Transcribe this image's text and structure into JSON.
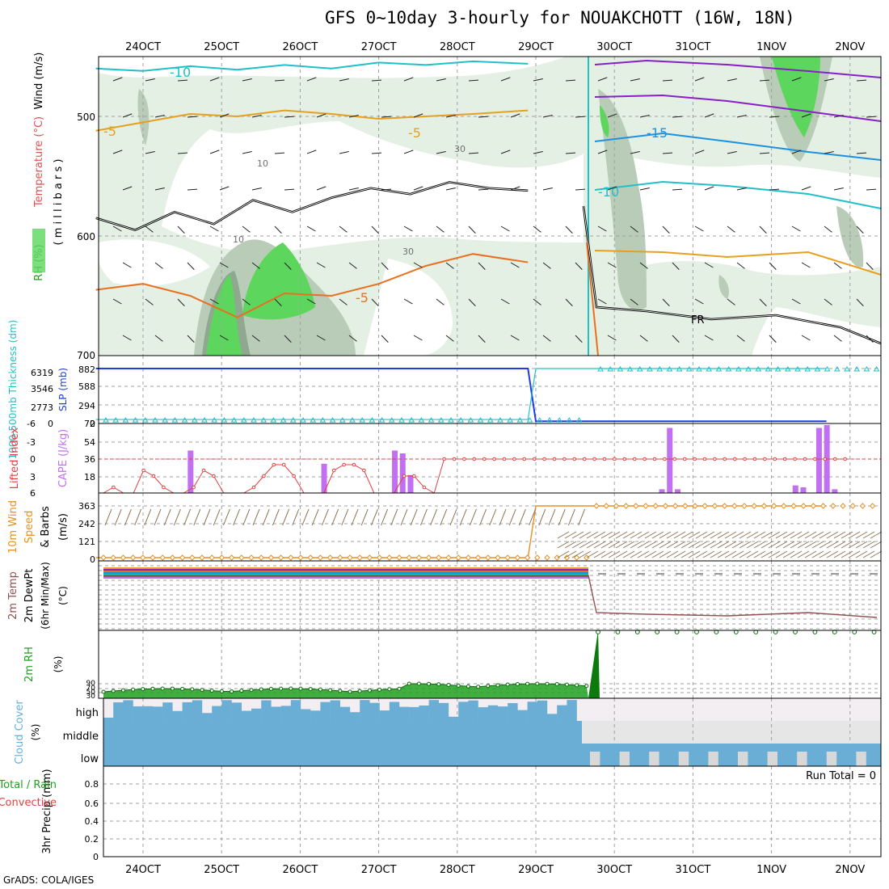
{
  "title": "GFS 0~10day 3-hourly for NOUAKCHOTT (16W, 18N)",
  "footer": "GrADS: COLA/IGES",
  "dates": [
    "24OCT",
    "25OCT",
    "26OCT",
    "27OCT",
    "28OCT",
    "29OCT",
    "30OCT",
    "31OCT",
    "1NOV",
    "2NOV"
  ],
  "colors": {
    "rh_light": "#e4f0e4",
    "rh_mid": "#b8ccb8",
    "rh_dark": "#8fa88f",
    "rh_green": "#5cd65c",
    "temp_cyan": "#20c0c8",
    "temp_orange": "#e6a020",
    "temp_dorange": "#e87020",
    "temp_blue": "#1e90e0",
    "temp_purple": "#8a1ec8",
    "slp": "#1e3ce0",
    "thick": "#20c0c8",
    "cape": "#c070f0",
    "li": "#e04040",
    "wind10": "#e89020",
    "barb": "#8a7050",
    "rh2m": "#20a020",
    "cloud": "#6aaed6",
    "cloud_bg": "#f2eef2"
  },
  "chart_data": [
    {
      "panel": "upper-air",
      "type": "heatmap",
      "ylabel_left": [
        "RH (%)",
        "Temperature (°C)",
        "Wind (m/s)"
      ],
      "ylabel_right": "( m i l l i b a r s )",
      "yticks": [
        "500",
        "600",
        "700"
      ],
      "contour_labels": [
        "-10",
        "-5",
        "-5",
        "-5",
        "-15",
        "-10",
        "30",
        "10",
        "10",
        "30",
        "FR"
      ],
      "series": [
        {
          "name": "-10",
          "color": "cyan",
          "x_day": [
            0,
            0.6,
            1.2,
            1.8,
            2.4,
            3,
            3.6,
            4.2,
            4.8,
            5.5
          ],
          "y_mb": [
            460,
            462,
            458,
            461,
            457,
            460,
            455,
            457,
            454,
            456
          ]
        },
        {
          "name": "-5",
          "color": "orange",
          "x_day": [
            0,
            0.6,
            1.2,
            1.8,
            2.4,
            3,
            3.6,
            4.2,
            4.8,
            5.5
          ],
          "y_mb": [
            512,
            505,
            498,
            500,
            495,
            498,
            502,
            500,
            498,
            495
          ]
        },
        {
          "name": "-5 lower",
          "color": "dark-orange",
          "x_day": [
            0,
            0.6,
            1.2,
            1.8,
            2.4,
            3,
            3.6,
            4.2,
            4.8,
            5.5
          ],
          "y_mb": [
            645,
            640,
            650,
            668,
            648,
            650,
            640,
            625,
            615,
            622
          ]
        },
        {
          "name": "FR",
          "color": "black",
          "x_day": [
            0,
            0.5,
            1,
            1.5,
            2,
            2.5,
            3,
            3.5,
            4,
            4.5,
            5,
            5.5
          ],
          "y_mb": [
            585,
            595,
            580,
            590,
            570,
            580,
            568,
            560,
            565,
            555,
            560,
            562
          ]
        }
      ]
    },
    {
      "panel": "slp-thickness",
      "type": "line",
      "ylabel": [
        "1000-500mb Thickness (dm)",
        "SLP (mb)"
      ],
      "yticks_left": [
        "6319",
        "3546",
        "2773",
        "0"
      ],
      "yticks_right": [
        "882",
        "588",
        "294",
        "0"
      ],
      "series": [
        {
          "name": "SLP",
          "x_day": [
            0,
            5.5,
            5.6,
            9.3
          ],
          "values": [
            882,
            882,
            10,
            10
          ]
        },
        {
          "name": "Thickness",
          "x_day": [
            0,
            5.5,
            5.6,
            9.3
          ],
          "values": [
            40,
            40,
            900,
            900
          ]
        }
      ]
    },
    {
      "panel": "cape-li",
      "type": "bar",
      "ylabel": [
        "Lifted Index",
        "CAPE (J/kg)"
      ],
      "yticks_left": [
        "-6",
        "-3",
        "0",
        "3",
        "6"
      ],
      "yticks_right": [
        "72",
        "54",
        "36",
        "18"
      ],
      "cape_bars": [
        {
          "x_day": 1.2,
          "value": 45
        },
        {
          "x_day": 2.9,
          "value": 31
        },
        {
          "x_day": 3.8,
          "value": 45
        },
        {
          "x_day": 3.9,
          "value": 42
        },
        {
          "x_day": 4.0,
          "value": 19
        },
        {
          "x_day": 7.2,
          "value": 4
        },
        {
          "x_day": 7.3,
          "value": 69
        },
        {
          "x_day": 7.4,
          "value": 4
        },
        {
          "x_day": 8.9,
          "value": 8
        },
        {
          "x_day": 9.0,
          "value": 6
        },
        {
          "x_day": 9.2,
          "value": 69
        },
        {
          "x_day": 9.3,
          "value": 72
        },
        {
          "x_day": 9.4,
          "value": 4
        }
      ],
      "li_values": [
        6,
        5,
        6,
        6,
        2,
        3,
        5,
        6,
        6,
        5,
        2,
        3,
        6,
        6,
        6,
        5,
        3,
        1,
        1,
        3,
        6,
        6,
        6,
        2,
        1,
        1,
        2,
        6,
        6,
        6,
        3,
        3,
        5,
        6,
        0,
        0,
        0,
        0,
        0,
        0,
        0,
        0,
        0,
        0,
        0,
        0,
        0,
        0,
        0,
        0,
        0,
        0,
        0,
        0,
        0,
        0,
        0,
        0,
        0,
        0,
        0,
        0,
        0,
        0,
        0,
        0,
        0,
        0,
        0,
        0,
        0,
        0,
        0,
        0,
        0
      ]
    },
    {
      "panel": "wind10m",
      "type": "line",
      "ylabel": [
        "10m Wind",
        "Speed",
        "& Barbs",
        "(m/s)"
      ],
      "yticks": [
        "363",
        "242",
        "121",
        "0"
      ],
      "series": [
        {
          "name": "10m Wind Speed",
          "x_day": [
            0,
            5.5,
            5.6,
            9.3
          ],
          "values": [
            0,
            0,
            363,
            363
          ]
        }
      ]
    },
    {
      "panel": "temp2m",
      "type": "line",
      "ylabel": [
        "2m Temp",
        "2m DewPt",
        "(6hr Min/Max)",
        "(°C)"
      ],
      "yticks": [],
      "series": [
        {
          "name": "2m Temp",
          "x_day": [
            0,
            5.5,
            5.6,
            9.3
          ],
          "values": [
            95,
            95,
            20,
            20
          ]
        }
      ]
    },
    {
      "panel": "rh2m",
      "type": "area",
      "ylabel": [
        "2m RH",
        "(%)"
      ],
      "yticks": [
        "90",
        "70",
        "50",
        "30"
      ],
      "series": [
        {
          "name": "2m RH",
          "x_day": [
            0,
            0.6,
            1.2,
            1.8,
            2.4,
            3,
            3.6,
            4.2,
            4.8,
            5.5,
            5.55,
            5.6,
            9.3
          ],
          "values": [
            30,
            40,
            34,
            44,
            32,
            36,
            52,
            58,
            42,
            50,
            100,
            8000,
            8000
          ]
        }
      ]
    },
    {
      "panel": "cloud",
      "type": "area",
      "ylabel": [
        "Cloud Cover",
        "(%)"
      ],
      "levels": [
        "high",
        "middle",
        "low"
      ]
    },
    {
      "panel": "precip",
      "type": "bar",
      "ylabel": [
        "3hr Precip (mm)",
        "Total / Rain",
        "Convective"
      ],
      "yticks": [
        "0.8",
        "0.6",
        "0.4",
        "0.2",
        "0"
      ],
      "ylim": [
        0,
        0.9
      ],
      "annotation": "Run Total = 0",
      "values": []
    }
  ]
}
